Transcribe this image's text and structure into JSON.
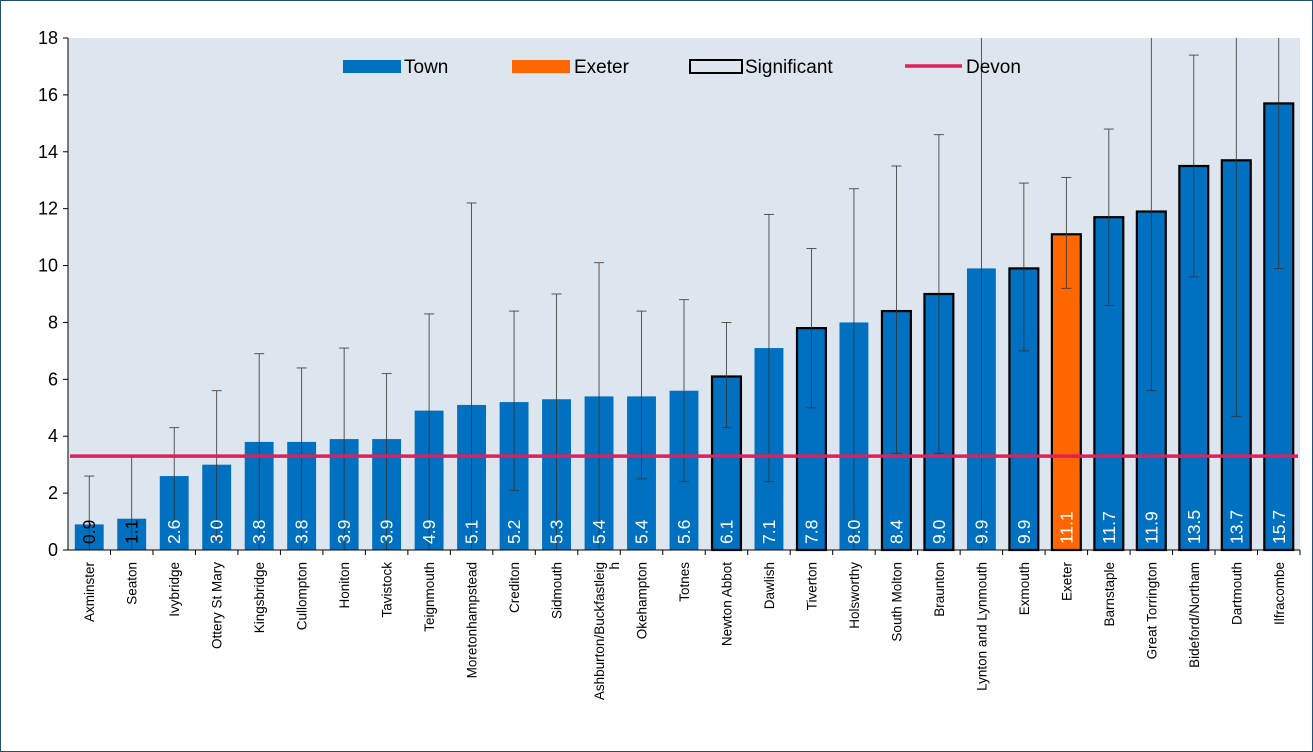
{
  "chart_data": {
    "type": "bar",
    "ylim": [
      0,
      18
    ],
    "yticks": [
      "0",
      "2",
      "4",
      "6",
      "8",
      "10",
      "12",
      "14",
      "16",
      "18"
    ],
    "grid": false,
    "legend_position": "top",
    "legend": [
      {
        "label": "Town",
        "style": "fill",
        "color": "#0070c0"
      },
      {
        "label": "Exeter",
        "style": "fill",
        "color": "#ff6600"
      },
      {
        "label": "Significant",
        "style": "outline",
        "color": "#000000"
      },
      {
        "label": "Devon",
        "style": "line",
        "color": "#e0205a"
      }
    ],
    "reference_line": {
      "name": "Devon",
      "value": 3.3
    },
    "colors": {
      "town": "#0070c0",
      "exeter": "#ff6600",
      "devon": "#e0205a",
      "plot_bg": "#dde6ee",
      "bar_label": "#ffffff"
    },
    "categories": [
      "Axminster",
      "Seaton",
      "Ivybridge",
      "Ottery St Mary",
      "Kingsbridge",
      "Cullompton",
      "Honiton",
      "Tavistock",
      "Teignmouth",
      "Moretonhampstead",
      "Crediton",
      "Sidmouth",
      "Ashburton/Buckfastleigh",
      "Okehampton",
      "Totnes",
      "Newton Abbot",
      "Dawlish",
      "Tiverton",
      "Holsworthy",
      "South Molton",
      "Braunton",
      "Lynton and Lynmouth",
      "Exmouth",
      "Exeter",
      "Barnstaple",
      "Great Torrington",
      "Bideford/Northam",
      "Dartmouth",
      "Ilfracombe"
    ],
    "category_lines": [
      [
        "Axminster"
      ],
      [
        "Seaton"
      ],
      [
        "Ivybridge"
      ],
      [
        "Ottery St Mary"
      ],
      [
        "Kingsbridge"
      ],
      [
        "Cullompton"
      ],
      [
        "Honiton"
      ],
      [
        "Tavistock"
      ],
      [
        "Teignmouth"
      ],
      [
        "Moretonhampstead"
      ],
      [
        "Crediton"
      ],
      [
        "Sidmouth"
      ],
      [
        "Ashburton/Buckfastleig",
        "h"
      ],
      [
        "Okehampton"
      ],
      [
        "Totnes"
      ],
      [
        "Newton Abbot"
      ],
      [
        "Dawlish"
      ],
      [
        "Tiverton"
      ],
      [
        "Holsworthy"
      ],
      [
        "South Molton"
      ],
      [
        "Braunton"
      ],
      [
        "Lynton and Lynmouth"
      ],
      [
        "Exmouth"
      ],
      [
        "Exeter"
      ],
      [
        "Barnstaple"
      ],
      [
        "Great Torrington"
      ],
      [
        "Bideford/Northam"
      ],
      [
        "Dartmouth"
      ],
      [
        "Ilfracombe"
      ]
    ],
    "values": [
      0.9,
      1.1,
      2.6,
      3.0,
      3.8,
      3.8,
      3.9,
      3.9,
      4.9,
      5.1,
      5.2,
      5.3,
      5.4,
      5.4,
      5.6,
      6.1,
      7.1,
      7.8,
      8.0,
      8.4,
      9.0,
      9.9,
      9.9,
      11.1,
      11.7,
      11.9,
      13.5,
      13.7,
      15.7
    ],
    "labels": [
      "0.9",
      "1.1",
      "2.6",
      "3.0",
      "3.8",
      "3.8",
      "3.9",
      "3.9",
      "4.9",
      "5.1",
      "5.2",
      "5.3",
      "5.4",
      "5.4",
      "5.6",
      "6.1",
      "7.1",
      "7.8",
      "8.0",
      "8.4",
      "9.0",
      "9.9",
      "9.9",
      "11.1",
      "11.7",
      "11.9",
      "13.5",
      "13.7",
      "15.7"
    ],
    "lower_ci": [
      0.0,
      0.0,
      1.0,
      0.4,
      0.0,
      0.0,
      0.0,
      0.0,
      0.0,
      0.0,
      2.1,
      0.0,
      0.0,
      2.5,
      2.4,
      4.3,
      2.4,
      5.0,
      0.0,
      3.4,
      3.4,
      0.0,
      7.0,
      9.2,
      8.6,
      5.6,
      9.6,
      4.7,
      9.9
    ],
    "upper_ci": [
      2.6,
      3.3,
      4.3,
      5.6,
      6.9,
      6.4,
      7.1,
      6.2,
      8.3,
      12.2,
      8.4,
      9.0,
      10.1,
      8.4,
      8.8,
      8.0,
      11.8,
      10.6,
      12.7,
      13.5,
      14.6,
      18.0,
      12.9,
      13.1,
      14.8,
      18.0,
      17.4,
      18.0,
      18.0
    ],
    "significant": [
      false,
      false,
      false,
      false,
      false,
      false,
      false,
      false,
      false,
      false,
      false,
      false,
      false,
      false,
      false,
      true,
      false,
      true,
      false,
      true,
      true,
      false,
      true,
      true,
      true,
      true,
      true,
      true,
      true
    ],
    "highlight": [
      false,
      false,
      false,
      false,
      false,
      false,
      false,
      false,
      false,
      false,
      false,
      false,
      false,
      false,
      false,
      false,
      false,
      false,
      false,
      false,
      false,
      false,
      false,
      true,
      false,
      false,
      false,
      false,
      false
    ]
  }
}
